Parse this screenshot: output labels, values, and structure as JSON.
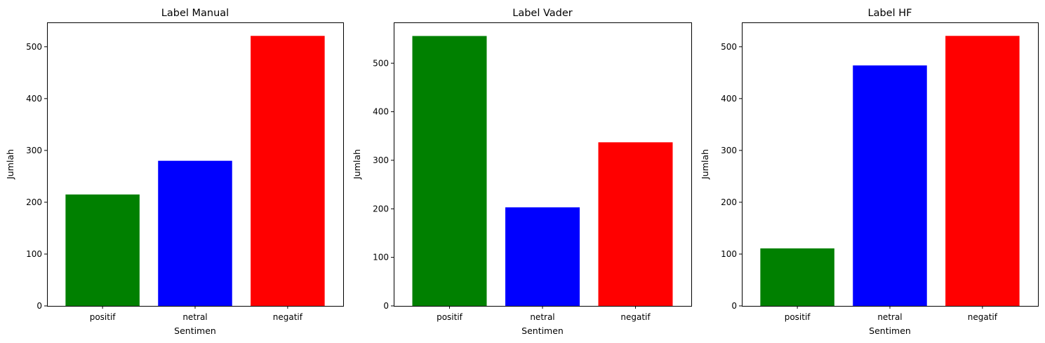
{
  "chart_data": [
    {
      "type": "bar",
      "title": "Label Manual",
      "xlabel": "Sentimen",
      "ylabel": "Jumlah",
      "categories": [
        "positif",
        "netral",
        "negatif"
      ],
      "values": [
        215,
        280,
        521
      ],
      "colors": [
        "#008000",
        "#0000ff",
        "#ff0000"
      ],
      "ylim": [
        0,
        547
      ],
      "yticks": [
        0,
        100,
        200,
        300,
        400,
        500
      ]
    },
    {
      "type": "bar",
      "title": "Label Vader",
      "xlabel": "Sentimen",
      "ylabel": "Jumlah",
      "categories": [
        "positif",
        "netral",
        "negatif"
      ],
      "values": [
        556,
        203,
        337
      ],
      "colors": [
        "#008000",
        "#0000ff",
        "#ff0000"
      ],
      "ylim": [
        0,
        584
      ],
      "yticks": [
        0,
        100,
        200,
        300,
        400,
        500
      ]
    },
    {
      "type": "bar",
      "title": "Label HF",
      "xlabel": "Sentimen",
      "ylabel": "Jumlah",
      "categories": [
        "positif",
        "netral",
        "negatif"
      ],
      "values": [
        111,
        464,
        521
      ],
      "colors": [
        "#008000",
        "#0000ff",
        "#ff0000"
      ],
      "ylim": [
        0,
        547
      ],
      "yticks": [
        0,
        100,
        200,
        300,
        400,
        500
      ]
    }
  ]
}
